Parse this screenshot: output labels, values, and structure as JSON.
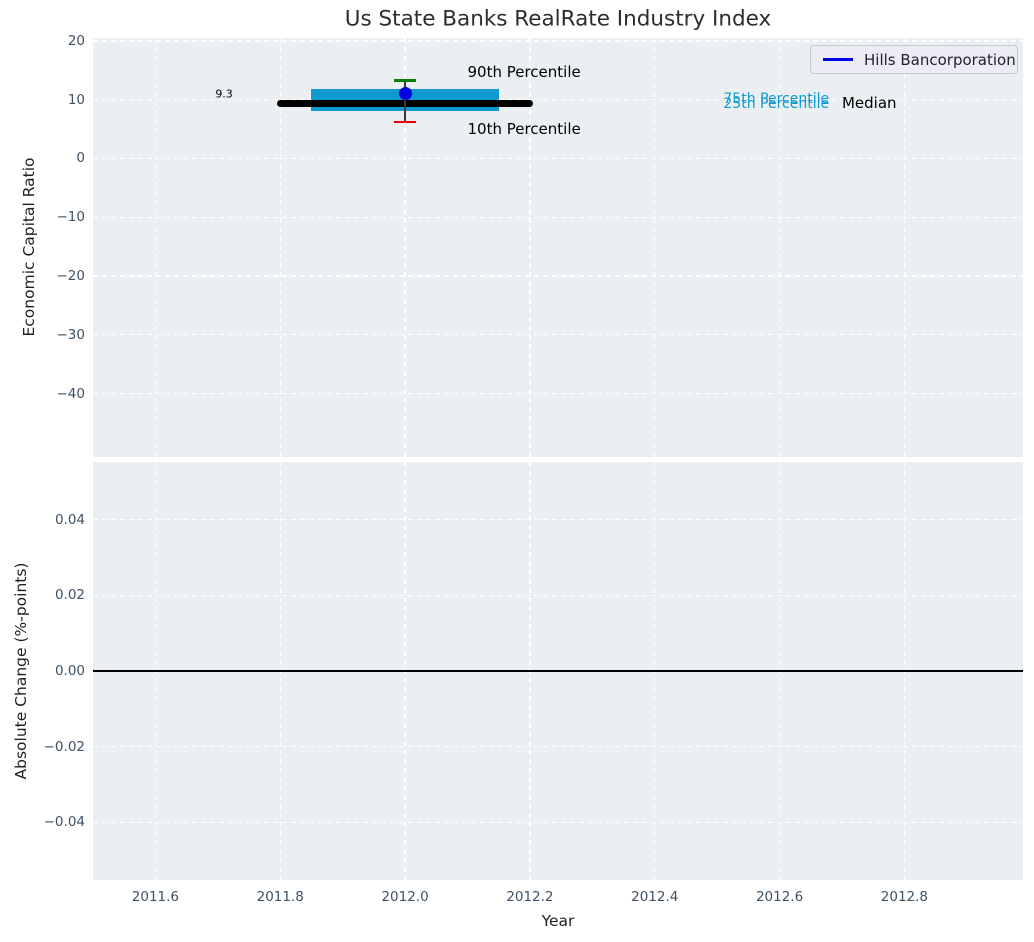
{
  "title": "Us State Banks RealRate Industry Index",
  "legend": {
    "label": "Hills Bancorporation",
    "line_color": "#0202f0",
    "position": "upper right"
  },
  "colors": {
    "plot_background": "#eceff1",
    "grid": "#ffffff",
    "tick_labels": "#3e5266",
    "company_line": "#0000e0",
    "iqr_band": "#0e9ad0",
    "median": "#000000",
    "p90_cap": "#008002",
    "p10_cap": "#e60000",
    "whisker_stem": "#3a3a3a"
  },
  "chart_data": [
    {
      "type": "scatter",
      "subplot": "top",
      "ylabel": "Economic Capital Ratio",
      "xlabel": "",
      "xlim": [
        2011.5,
        2012.99
      ],
      "ylim": [
        -50.8,
        20.5
      ],
      "grid": true,
      "show_xticklabels": false,
      "xticks": [
        2011.6,
        2011.8,
        2012.0,
        2012.2,
        2012.4,
        2012.6,
        2012.8
      ],
      "xticklabels": [
        "2011.6",
        "2011.8",
        "2012.0",
        "2012.2",
        "2012.4",
        "2012.6",
        "2012.8"
      ],
      "yticks": [
        20,
        10,
        0,
        -10,
        -20,
        -30,
        -40
      ],
      "yticklabels": [
        "20",
        "10",
        "0",
        "−10",
        "−20",
        "−30",
        "−40"
      ],
      "series": {
        "company": {
          "name": "Hills Bancorporation",
          "x": 2012.0,
          "value": 11.1,
          "color": "#0000e0"
        },
        "median": {
          "value": 9.3,
          "x_start": 2011.8,
          "x_end": 2012.2,
          "color": "#000000"
        },
        "iqr_band": {
          "p75": 10.6,
          "p25": 9.2,
          "x_start": 2011.85,
          "x_end": 2012.15,
          "color": "#0e9ad0"
        },
        "p90": {
          "x": 2012.0,
          "value": 13.2,
          "color": "#008002"
        },
        "p10": {
          "x": 2012.0,
          "value": 6.2,
          "color": "#e60000"
        },
        "stem_color": "#3a3a3a"
      },
      "annotations": [
        {
          "id": "median-value-label",
          "text": "9.3",
          "x": 2011.71,
          "y": 11.0,
          "color": "#000000",
          "size": 11,
          "ha": "center"
        },
        {
          "id": "p90-label",
          "text": "90th Percentile",
          "x": 2012.1,
          "y": 14.7,
          "color": "#000000",
          "size": 15,
          "ha": "left"
        },
        {
          "id": "p10-label",
          "text": "10th Percentile",
          "x": 2012.1,
          "y": 5.0,
          "color": "#000000",
          "size": 15,
          "ha": "left"
        },
        {
          "id": "p75-label",
          "text": "75th Percentile",
          "x": 2012.51,
          "y": 10.1,
          "color": "#0e9ad0",
          "size": 14,
          "ha": "left"
        },
        {
          "id": "p25-label",
          "text": "25th Percentile",
          "x": 2012.51,
          "y": 9.3,
          "color": "#0e9ad0",
          "size": 14,
          "ha": "left"
        },
        {
          "id": "median-label",
          "text": "Median",
          "x": 2012.7,
          "y": 9.4,
          "color": "#000000",
          "size": 15,
          "ha": "left"
        }
      ]
    },
    {
      "type": "line",
      "subplot": "bottom",
      "ylabel": "Absolute Change (%-points)",
      "xlabel": "Year",
      "xlim": [
        2011.5,
        2012.99
      ],
      "ylim": [
        -0.0552,
        0.0552
      ],
      "grid": true,
      "show_xticklabels": true,
      "xticks": [
        2011.6,
        2011.8,
        2012.0,
        2012.2,
        2012.4,
        2012.6,
        2012.8
      ],
      "xticklabels": [
        "2011.6",
        "2011.8",
        "2012.0",
        "2012.2",
        "2012.4",
        "2012.6",
        "2012.8"
      ],
      "yticks": [
        0.04,
        0.02,
        0.0,
        -0.02,
        -0.04
      ],
      "yticklabels": [
        "0.04",
        "0.02",
        "0.00",
        "−0.02",
        "−0.04"
      ],
      "series": [],
      "zero_line": {
        "value": 0.0,
        "color": "#000000"
      },
      "annotations": []
    }
  ]
}
